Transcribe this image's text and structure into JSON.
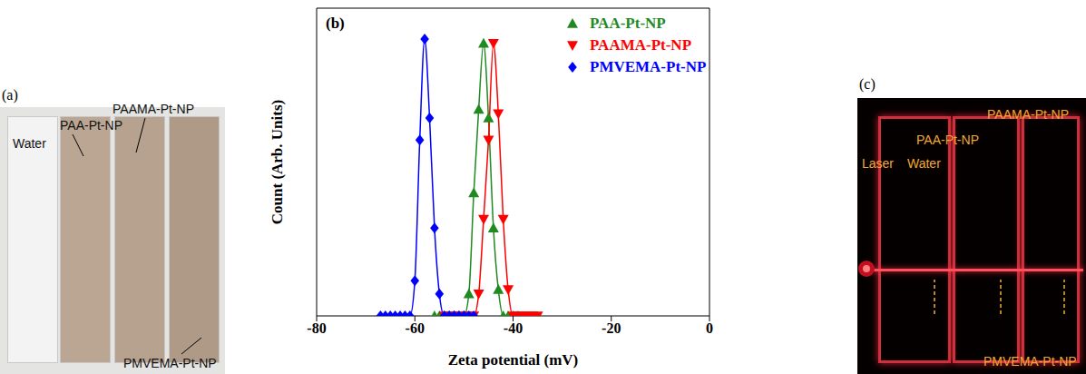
{
  "panel_a": {
    "label": "(a)",
    "texts": [
      "Water",
      "PAA-Pt-NP",
      "PAAMA-Pt-NP",
      "PMVEMA-Pt-NP"
    ]
  },
  "chart_data": {
    "type": "line",
    "annotations": [
      "(b)"
    ],
    "x_label": "Zeta potential (mV)",
    "y_label": "Count (Arb. Units)",
    "xlim": [
      -80,
      0
    ],
    "xticks": [
      -80,
      -60,
      -40,
      -20,
      0
    ],
    "ylim": [
      0,
      70
    ],
    "tick_labels": "x",
    "legend": "upper right",
    "line_style": "solid",
    "series": [
      {
        "name": "PAA-Pt-NP",
        "color": "#1f8a1f",
        "marker": "triangle-up",
        "x": [
          -56,
          -55,
          -54,
          -53,
          -52,
          -51,
          -50,
          -49,
          -48,
          -47,
          -46,
          -45,
          -44,
          -43,
          -42,
          -41,
          -40,
          -39
        ],
        "values": [
          0,
          0,
          0,
          0,
          0,
          0,
          0,
          5,
          28,
          47,
          62,
          45,
          20,
          6,
          0,
          0,
          0,
          0
        ]
      },
      {
        "name": "PAAMA-Pt-NP",
        "color": "#ff0000",
        "marker": "triangle-down",
        "x": [
          -54,
          -53,
          -52,
          -51,
          -50,
          -49,
          -48,
          -47,
          -46,
          -45,
          -44,
          -43,
          -42,
          -41,
          -40,
          -39,
          -38,
          -37,
          -36,
          -35
        ],
        "values": [
          0,
          0,
          0,
          0,
          0,
          0,
          0,
          5,
          22,
          40,
          62,
          46,
          22,
          6,
          0,
          0,
          0,
          0,
          0,
          0
        ]
      },
      {
        "name": "PMVEMA-Pt-NP",
        "color": "#0000ff",
        "marker": "diamond",
        "x": [
          -67,
          -66,
          -65,
          -64,
          -63,
          -62,
          -61,
          -60,
          -59,
          -58,
          -57,
          -56,
          -55,
          -54,
          -53,
          -52,
          -51,
          -50,
          -49,
          -48
        ],
        "values": [
          0,
          0,
          0,
          0,
          0,
          0,
          0,
          8,
          40,
          63,
          45,
          20,
          5,
          0,
          0,
          0,
          0,
          0,
          0,
          0
        ]
      }
    ]
  },
  "panel_c": {
    "label": "(c)",
    "texts": [
      "Laser",
      "Water",
      "PAA-Pt-NP",
      "PAAMA-Pt-NP",
      "PMVEMA-Pt-NP"
    ]
  }
}
